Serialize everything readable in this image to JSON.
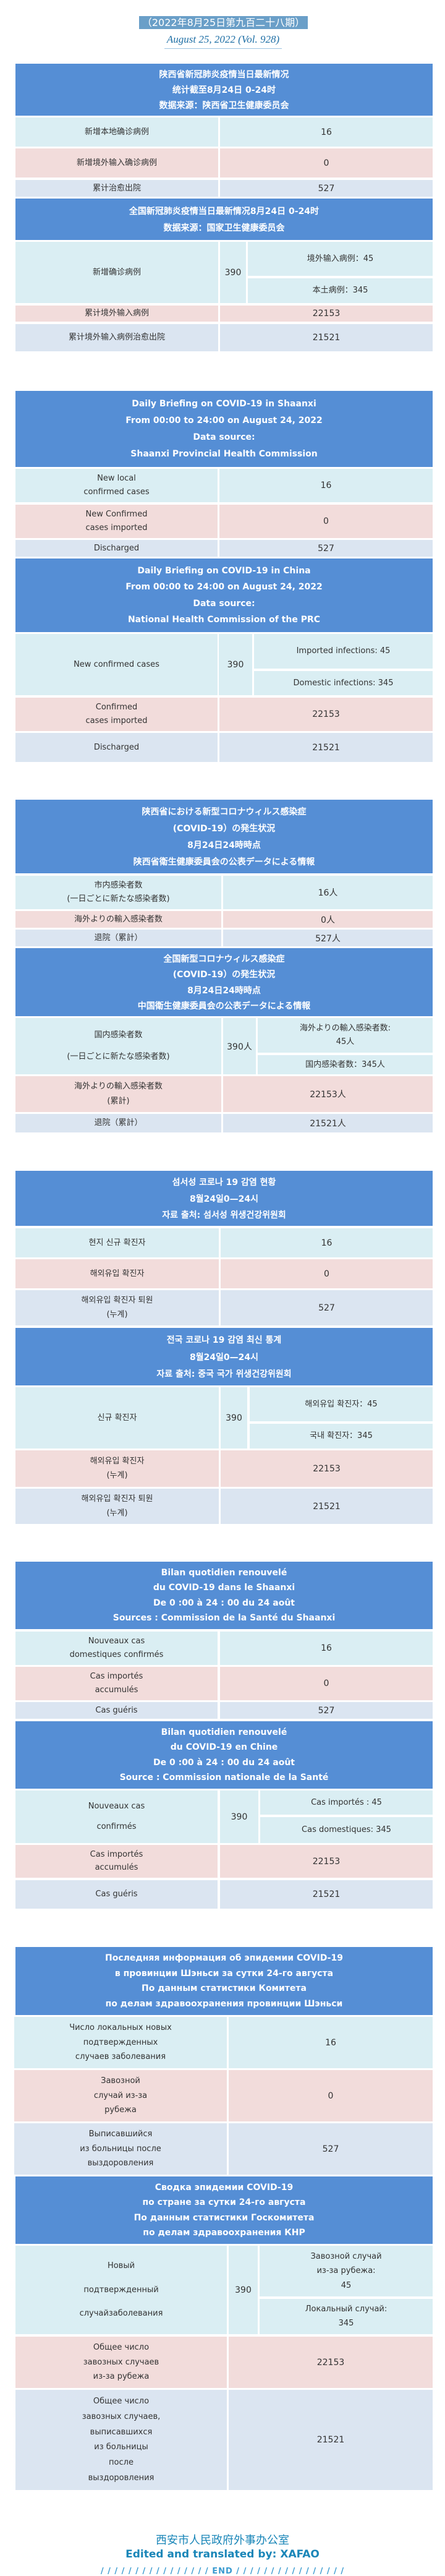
{
  "issue_tag": "（2022年8月25日第九百二十八期）",
  "issue_date_en": "August 25, 2022 (Vol. 928)",
  "colors": {
    "header": "#558ed5",
    "row_blue": "#daeef3",
    "row_pink": "#f2dcdb",
    "row_gray": "#dbe5f1",
    "footer": "#1a86b8"
  },
  "sections": [
    {
      "lang": "zh",
      "province": {
        "header": [
          "陕西省新冠肺炎疫情当日最新情况",
          "统计截至8月24日 0-24时",
          "数据来源：陕西省卫生健康委员会"
        ],
        "rows": [
          {
            "label": [
              "新增本地确诊病例"
            ],
            "value": "16"
          },
          {
            "label": [
              "新增境外输入确诊病例"
            ],
            "value": "0"
          },
          {
            "label": [
              "累计治愈出院"
            ],
            "value": "527"
          }
        ]
      },
      "national": {
        "header": [
          "全国新冠肺炎疫情当日最新情况8月24日 0-24时",
          "数据来源：国家卫生健康委员会"
        ],
        "new_cases": {
          "label": [
            "新增确诊病例"
          ],
          "value": "390",
          "imported": [
            "境外输入病例：45"
          ],
          "domestic": [
            "本土病例：345"
          ]
        },
        "rows": [
          {
            "label": [
              "累计境外输入病例"
            ],
            "value": "22153"
          },
          {
            "label": [
              "累计境外输入病例治愈出院"
            ],
            "value": "21521"
          }
        ]
      }
    },
    {
      "lang": "en",
      "province": {
        "header": [
          "Daily Briefing on COVID-19 in Shaanxi",
          "From 00:00 to 24:00 on August 24, 2022",
          "Data source:",
          "Shaanxi Provincial Health Commission"
        ],
        "rows": [
          {
            "label": [
              "New local",
              "confirmed cases"
            ],
            "value": "16"
          },
          {
            "label": [
              "New Confirmed",
              "cases imported"
            ],
            "value": "0"
          },
          {
            "label": [
              "Discharged"
            ],
            "value": "527"
          }
        ]
      },
      "national": {
        "header": [
          "Daily Briefing on COVID-19 in China",
          "From 00:00 to 24:00 on  August 24, 2022",
          "Data source:",
          "National Health Commission of the PRC"
        ],
        "new_cases": {
          "label": [
            "New confirmed cases"
          ],
          "value": "390",
          "imported": [
            "Imported infections: 45"
          ],
          "domestic": [
            "Domestic infections: 345"
          ]
        },
        "rows": [
          {
            "label": [
              "Confirmed",
              "cases imported"
            ],
            "value": "22153"
          },
          {
            "label": [
              "Discharged"
            ],
            "value": "21521"
          }
        ]
      }
    },
    {
      "lang": "ja",
      "province": {
        "header": [
          "陕西省における新型コロナウィルス感染症",
          "(COVID-19）の発生状況",
          "8月24日24時時点",
          "陕西省衛生健康委員会の公表データによる情報"
        ],
        "rows": [
          {
            "label": [
              "市内感染者数",
              "(一日ごとに新たな感染者数)"
            ],
            "value": "16人"
          },
          {
            "label": [
              "海外よりの輸入感染者数"
            ],
            "value": "0人"
          },
          {
            "label": [
              "退院（累計）"
            ],
            "value": "527人"
          }
        ]
      },
      "national": {
        "header": [
          "全国新型コロナウィルス感染症",
          "(COVID-19）の発生状況",
          "8月24日24時時点",
          "中国衛生健康委員会の公表データによる情報"
        ],
        "new_cases": {
          "label": [
            "国内感染者数",
            "(一日ごとに新たな感染者数)"
          ],
          "value": "390人",
          "imported": [
            "海外よりの輸入感染者数:",
            "45人"
          ],
          "domestic": [
            "国内感染者数：345人"
          ]
        },
        "rows": [
          {
            "label": [
              "海外よりの輸入感染者数",
              "(累計)"
            ],
            "value": "22153人"
          },
          {
            "label": [
              "退院（累計）"
            ],
            "value": "21521人"
          }
        ]
      }
    },
    {
      "lang": "ko",
      "province": {
        "header": [
          "섬서성 코로나 19 감염 현황",
          "8월24일0—24시",
          "자료 출처: 섬서성 위생건강위원회"
        ],
        "rows": [
          {
            "label": [
              "현지 신규 확진자"
            ],
            "value": "16"
          },
          {
            "label": [
              "해외유입 확진자"
            ],
            "value": "0"
          },
          {
            "label": [
              "해외유입 확진자 퇴원",
              "(누계)"
            ],
            "value": "527"
          }
        ]
      },
      "national": {
        "header": [
          "전국 코로나 19 감염 최신 통계",
          "8월24일0—24시",
          "자료 출처: 중국 국가 위생건강위원회"
        ],
        "new_cases": {
          "label": [
            "신규 확진자"
          ],
          "value": "390",
          "imported": [
            "해외유입 확진자：45"
          ],
          "domestic": [
            "국내 확진자：345"
          ]
        },
        "rows": [
          {
            "label": [
              "해외유입 확진자",
              "(누계)"
            ],
            "value": "22153"
          },
          {
            "label": [
              "해외유입 확진자 퇴원",
              "(누계)"
            ],
            "value": "21521"
          }
        ]
      }
    },
    {
      "lang": "fr",
      "province": {
        "header": [
          "Bilan quotidien renouvelé",
          "du COVID-19 dans le Shaanxi",
          "De 0 :00 à 24 : 00 du 24 août",
          "Sources : Commission de la Santé du Shaanxi"
        ],
        "rows": [
          {
            "label": [
              "Nouveaux cas",
              "domestiques confirmés"
            ],
            "value": "16"
          },
          {
            "label": [
              "Cas importés",
              "accumulés"
            ],
            "value": "0"
          },
          {
            "label": [
              "Cas guéris"
            ],
            "value": "527"
          }
        ]
      },
      "national": {
        "header": [
          "Bilan quotidien renouvelé",
          "du COVID-19 en Chine",
          "De 0 :00 à 24 : 00 du 24 août",
          "Source : Commission nationale de la Santé"
        ],
        "new_cases": {
          "label": [
            "Nouveaux cas",
            "confirmés"
          ],
          "value": "390",
          "imported": [
            "Cas importés : 45"
          ],
          "domestic": [
            "Cas domestiques: 345"
          ]
        },
        "rows": [
          {
            "label": [
              "Cas importés",
              "accumulés"
            ],
            "value": "22153"
          },
          {
            "label": [
              "Cas guéris"
            ],
            "value": "21521"
          }
        ]
      }
    },
    {
      "lang": "ru",
      "province": {
        "header": [
          "Последняя информация об эпидемии COVID-19",
          "в провинции Шэньси за сутки  24-го августа",
          "По данным статистики Комитета",
          "по делам здравоохранения провинции Шэньси"
        ],
        "rows": [
          {
            "label": [
              "Число локальных новых",
              "подтвержденных",
              "случаев заболевания"
            ],
            "value": "16"
          },
          {
            "label": [
              "Завозной",
              "случай из-за",
              "рубежа"
            ],
            "value": "0"
          },
          {
            "label": [
              "Выписавшийся",
              "из больницы после",
              "выздоровления"
            ],
            "value": "527"
          }
        ]
      },
      "national": {
        "header": [
          "Сводка эпидемии COVID-19",
          "по стране за сутки  24-го августа",
          "По данным статистики Госкомитета",
          "по делам здравоохранения КНР"
        ],
        "new_cases": {
          "label": [
            "Новый",
            "подтвержденный",
            "случайзаболевания"
          ],
          "value": "390",
          "imported": [
            "Завозной случай",
            "из-за рубежа:",
            "45"
          ],
          "domestic": [
            "Локальный случай:",
            "345"
          ]
        },
        "rows": [
          {
            "label": [
              "Общее число",
              "завозных случаев",
              "из-за рубежа"
            ],
            "value": "22153"
          },
          {
            "label": [
              "Общее число",
              "завозных случаев,",
              "выписавшихся",
              "из больницы",
              "после",
              "выздоровления"
            ],
            "value": "21521"
          }
        ]
      }
    }
  ],
  "footer": {
    "org": "西安市人民政府外事办公室",
    "credit": "Edited and translated by: XAFAO",
    "end": "END"
  }
}
